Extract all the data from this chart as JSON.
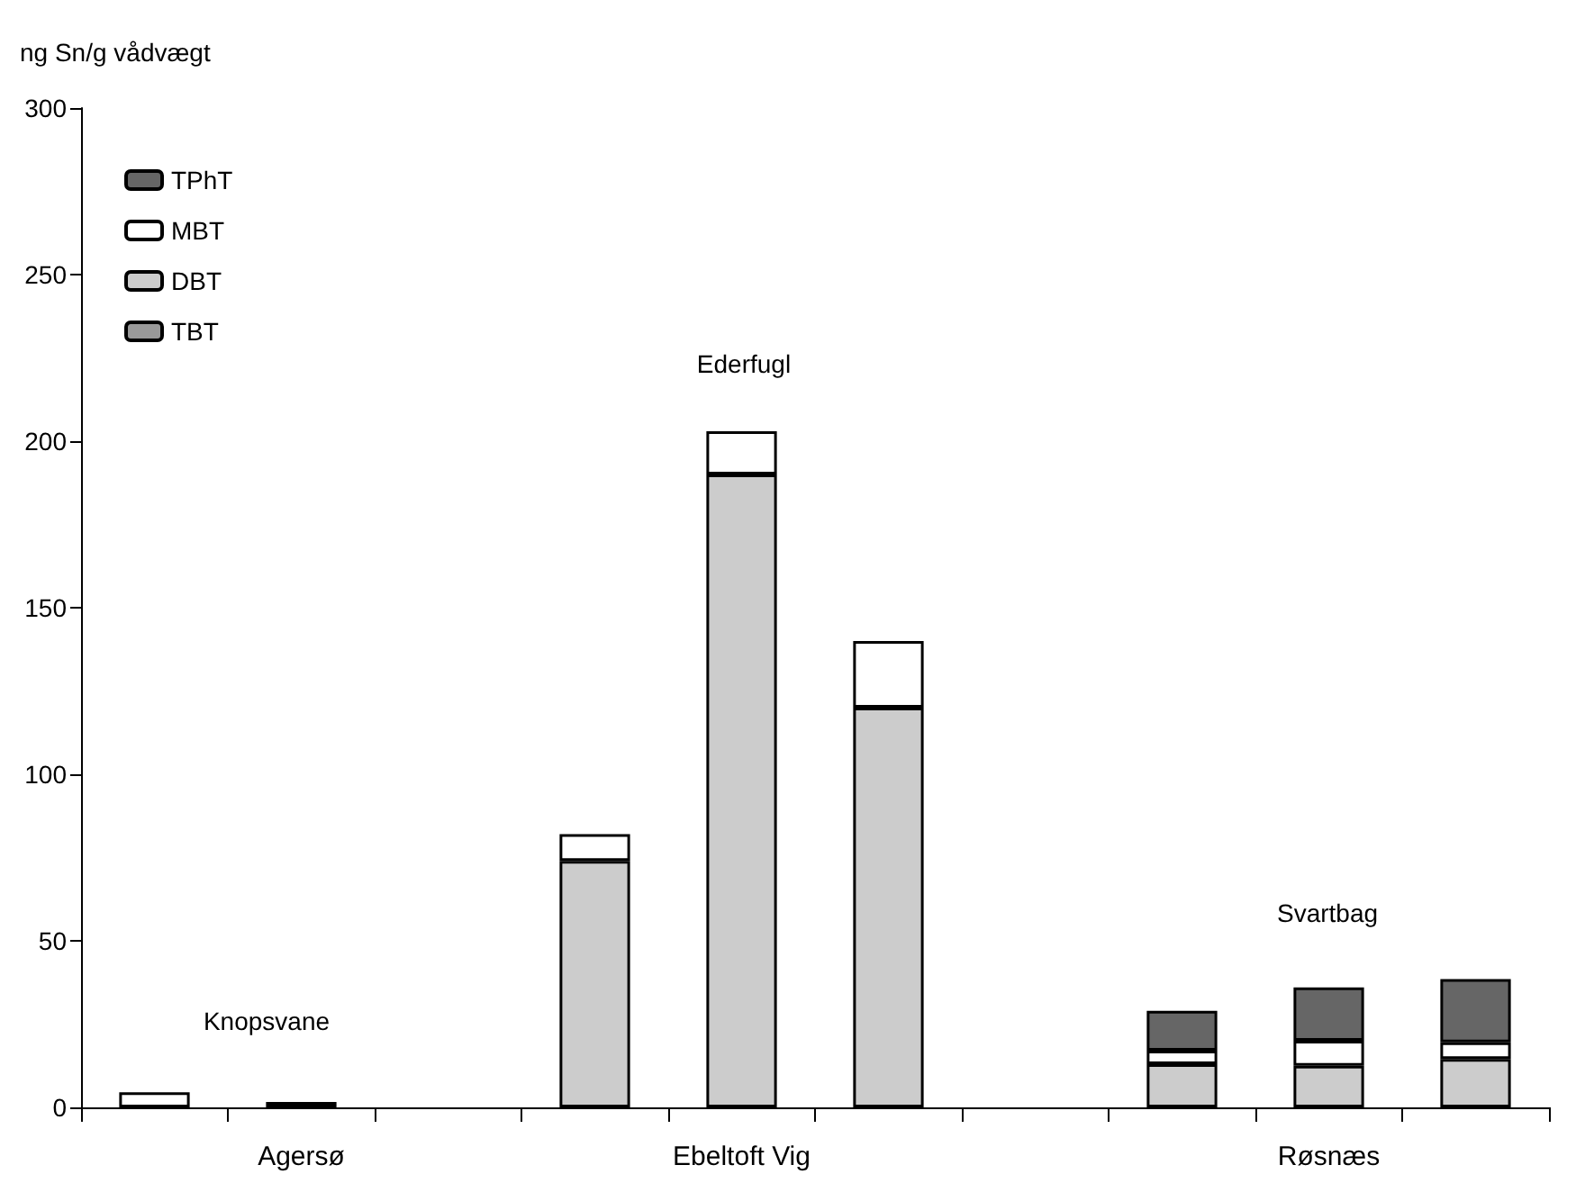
{
  "chart_data": {
    "type": "bar",
    "stacked": true,
    "ylabel": "ng Sn/g vådvægt",
    "categories": [
      null,
      "Agersø",
      null,
      null,
      "Ebeltoft Vig",
      null,
      null,
      null,
      "Røsnæs",
      null
    ],
    "series": [
      {
        "name": "TBT",
        "color": "#999999",
        "values": [
          null,
          null,
          null,
          null,
          null,
          null,
          null,
          null,
          null,
          null
        ]
      },
      {
        "name": "DBT",
        "color": "#cccccc",
        "values": [
          null,
          1.6,
          null,
          74,
          190,
          120,
          null,
          13,
          12.5,
          14.5
        ]
      },
      {
        "name": "MBT",
        "color": "#ffffff",
        "values": [
          4.5,
          null,
          null,
          8,
          13,
          20,
          null,
          4,
          7.5,
          5
        ]
      },
      {
        "name": "TPhT",
        "color": "#666666",
        "values": [
          null,
          null,
          null,
          null,
          null,
          null,
          null,
          12,
          16,
          19
        ]
      }
    ],
    "ylim": [
      0,
      300
    ],
    "yticks": [
      0,
      50,
      100,
      150,
      200,
      250,
      300
    ],
    "grid": false,
    "legend": "top left",
    "annotations": [
      "Knopsvane",
      "Ederfugl",
      "Svartbag"
    ]
  }
}
